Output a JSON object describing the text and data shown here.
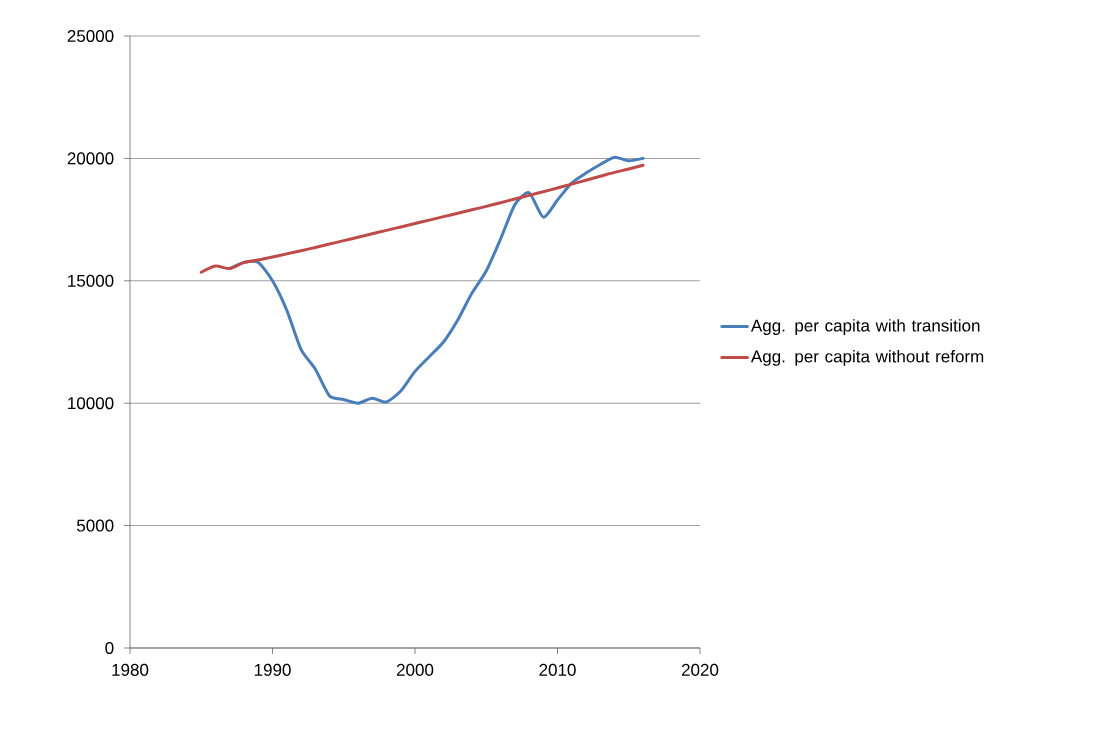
{
  "chart_data": {
    "type": "line",
    "x": [
      1985,
      1986,
      1987,
      1988,
      1989,
      1990,
      1991,
      1992,
      1993,
      1994,
      1995,
      1996,
      1997,
      1998,
      1999,
      2000,
      2001,
      2002,
      2003,
      2004,
      2005,
      2006,
      2007,
      2008,
      2009,
      2010,
      2011,
      2012,
      2013,
      2014,
      2015,
      2016
    ],
    "series": [
      {
        "name": "Agg. per capita with transition",
        "color": "#4a7ebb",
        "values": [
          null,
          null,
          15500,
          15750,
          15750,
          15000,
          13800,
          12200,
          11400,
          10300,
          10150,
          10000,
          10200,
          10050,
          10500,
          11300,
          11900,
          12500,
          13400,
          14500,
          15400,
          16700,
          18100,
          18600,
          17600,
          18300,
          19000,
          19400,
          19750,
          20050,
          19900,
          20000
        ]
      },
      {
        "name": "Agg. per capita without reform",
        "color": "#be4b48",
        "values": [
          15350,
          15600,
          15500,
          15750,
          15850,
          15970,
          16100,
          16230,
          16360,
          16500,
          16640,
          16780,
          16920,
          17060,
          17200,
          17340,
          17480,
          17620,
          17760,
          17900,
          18040,
          18190,
          18340,
          18490,
          18640,
          18790,
          18950,
          19110,
          19270,
          19430,
          19570,
          19720
        ]
      }
    ],
    "xlim": [
      1980,
      2020
    ],
    "xticks": [
      1980,
      1990,
      2000,
      2010,
      2020
    ],
    "ylim": [
      0,
      25000
    ],
    "yticks": [
      0,
      5000,
      10000,
      15000,
      20000,
      25000
    ],
    "grid": "y",
    "legend": "right",
    "marker": "none",
    "line_style": "solid"
  }
}
